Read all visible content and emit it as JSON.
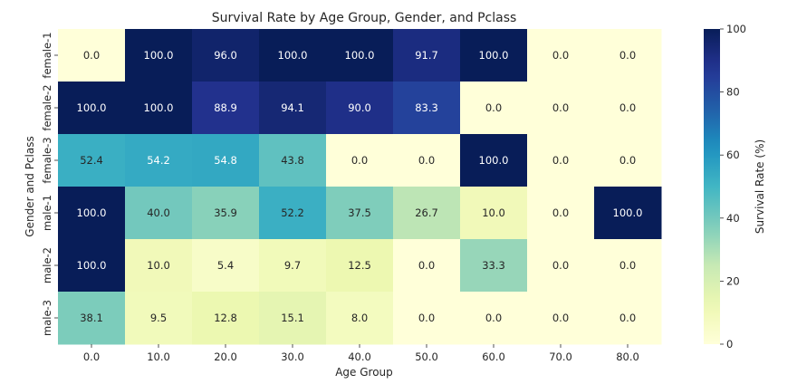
{
  "chart_data": {
    "type": "heatmap",
    "title": "Survival Rate by Age Group, Gender, and Pclass",
    "xlabel": "Age Group",
    "ylabel": "Gender and Pclass",
    "x_categories": [
      "0.0",
      "10.0",
      "20.0",
      "30.0",
      "40.0",
      "50.0",
      "60.0",
      "70.0",
      "80.0"
    ],
    "y_categories": [
      "female-1",
      "female-2",
      "female-3",
      "male-1",
      "male-2",
      "male-3"
    ],
    "values": [
      [
        0.0,
        100.0,
        96.0,
        100.0,
        100.0,
        91.7,
        100.0,
        0.0,
        0.0
      ],
      [
        100.0,
        100.0,
        88.9,
        94.1,
        90.0,
        83.3,
        0.0,
        0.0,
        0.0
      ],
      [
        52.4,
        54.2,
        54.8,
        43.8,
        0.0,
        0.0,
        100.0,
        0.0,
        0.0
      ],
      [
        100.0,
        40.0,
        35.9,
        52.2,
        37.5,
        26.7,
        10.0,
        0.0,
        100.0
      ],
      [
        100.0,
        10.0,
        5.4,
        9.7,
        12.5,
        0.0,
        33.3,
        0.0,
        0.0
      ],
      [
        38.1,
        9.5,
        12.8,
        15.1,
        8.0,
        0.0,
        0.0,
        0.0,
        0.0
      ]
    ],
    "value_format": "0.0",
    "colormap": "YlGnBu",
    "vmin": 0,
    "vmax": 100,
    "colorbar": {
      "label": "Survival Rate (%)",
      "ticks": [
        0,
        20,
        40,
        60,
        80,
        100
      ]
    }
  }
}
